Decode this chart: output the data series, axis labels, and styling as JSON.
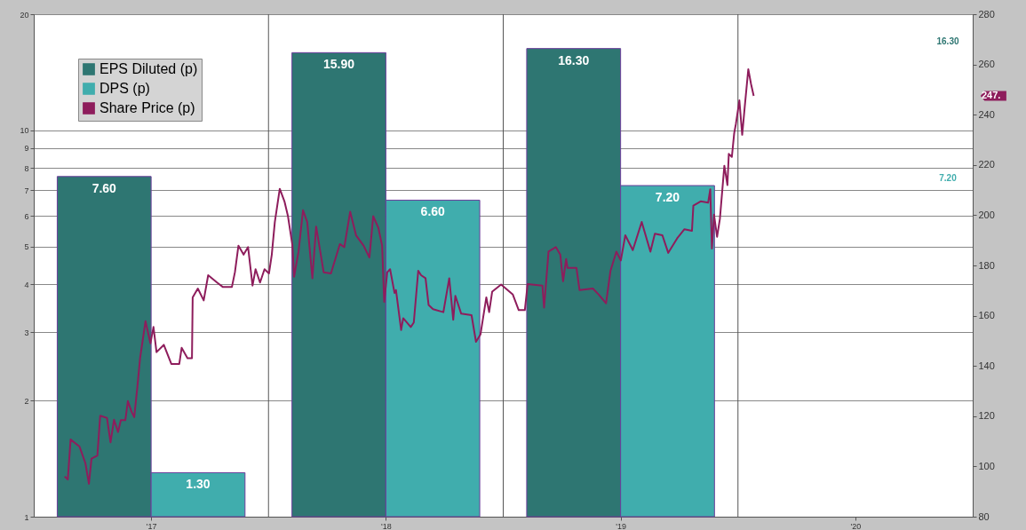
{
  "chart_data": {
    "type": "bar",
    "series": [
      {
        "name": "EPS Diluted (p)",
        "color": "#2e7672",
        "x": [
          2016.8,
          2017.8,
          2018.8
        ],
        "values": [
          7.6,
          15.9,
          16.3
        ],
        "value_labels": [
          "7.60",
          "15.90",
          "16.30"
        ]
      },
      {
        "name": "DPS (p)",
        "color": "#40adad",
        "x": [
          2017.2,
          2018.2,
          2019.2
        ],
        "values": [
          1.3,
          6.6,
          7.2
        ],
        "value_labels": [
          "1.30",
          "6.60",
          "7.20"
        ]
      },
      {
        "name": "Share Price (p)",
        "type": "line",
        "axis": "y2",
        "color": "#8e1d5c",
        "x": [
          2016.632,
          2016.645,
          2016.657,
          2016.695,
          2016.72,
          2016.735,
          2016.746,
          2016.771,
          2016.783,
          2016.812,
          2016.827,
          2016.842,
          2016.859,
          2016.871,
          2016.89,
          2016.901,
          2016.916,
          2016.928,
          2016.941,
          2016.953,
          2016.976,
          2016.997,
          2017.01,
          2017.023,
          2017.054,
          2017.086,
          2017.12,
          2017.13,
          2017.155,
          2017.174,
          2017.177,
          2017.199,
          2017.224,
          2017.243,
          2017.281,
          2017.306,
          2017.344,
          2017.357,
          2017.372,
          2017.394,
          2017.413,
          2017.432,
          2017.445,
          2017.464,
          2017.483,
          2017.502,
          2017.514,
          2017.527,
          2017.548,
          2017.568,
          2017.583,
          2017.602,
          2017.609,
          2017.628,
          2017.647,
          2017.665,
          2017.687,
          2017.703,
          2017.735,
          2017.766,
          2017.804,
          2017.823,
          2017.848,
          2017.873,
          2017.905,
          2017.93,
          2017.946,
          2017.968,
          2017.984,
          2017.993,
          2018.006,
          2018.018,
          2018.037,
          2018.043,
          2018.065,
          2018.074,
          2018.106,
          2018.119,
          2018.138,
          2018.15,
          2018.169,
          2018.182,
          2018.201,
          2018.245,
          2018.27,
          2018.287,
          2018.296,
          2018.321,
          2018.365,
          2018.384,
          2018.403,
          2018.428,
          2018.44,
          2018.453,
          2018.491,
          2018.541,
          2018.566,
          2018.592,
          2018.604,
          2018.667,
          2018.674,
          2018.693,
          2018.724,
          2018.743,
          2018.755,
          2018.768,
          2018.774,
          2018.812,
          2018.825,
          2018.882,
          2018.907,
          2018.938,
          2018.957,
          2018.982,
          2019.001,
          2019.02,
          2019.052,
          2019.09,
          2019.127,
          2019.146,
          2019.178,
          2019.203,
          2019.241,
          2019.272,
          2019.304,
          2019.31,
          2019.341,
          2019.373,
          2019.382,
          2019.389,
          2019.398,
          2019.411,
          2019.423,
          2019.442,
          2019.455,
          2019.461,
          2019.474,
          2019.484,
          2019.491,
          2019.506,
          2019.518,
          2019.529,
          2019.544,
          2019.556,
          2019.567
        ],
        "values": [
          96.0,
          94.8,
          110.7,
          107.9,
          101.3,
          93.1,
          103.1,
          104.3,
          120.2,
          119.3,
          109.6,
          118.6,
          113.7,
          118.4,
          118.4,
          126.0,
          121.9,
          119.6,
          131.3,
          143.1,
          157.8,
          149.0,
          155.5,
          145.5,
          148.4,
          140.8,
          140.8,
          147.2,
          143.1,
          143.1,
          167.3,
          170.8,
          166.1,
          176.1,
          173.2,
          171.4,
          171.4,
          177.3,
          187.9,
          184.3,
          187.3,
          172.0,
          178.5,
          173.2,
          178.5,
          176.8,
          184.3,
          197.3,
          210.5,
          205.5,
          199.6,
          187.9,
          175.5,
          185.5,
          202.0,
          197.3,
          174.9,
          195.5,
          177.3,
          176.8,
          188.5,
          187.3,
          201.4,
          192.0,
          187.9,
          183.2,
          199.6,
          195.0,
          187.9,
          165.5,
          177.3,
          178.5,
          169.0,
          170.2,
          154.3,
          159.0,
          155.5,
          157.3,
          177.9,
          176.1,
          174.9,
          164.3,
          162.6,
          161.4,
          174.9,
          158.4,
          167.9,
          160.8,
          160.2,
          149.6,
          152.5,
          167.3,
          161.4,
          169.6,
          172.4,
          168.4,
          162.2,
          162.2,
          172.6,
          172.0,
          163.2,
          185.5,
          187.3,
          184.3,
          173.7,
          182.6,
          179.0,
          179.0,
          170.2,
          170.8,
          168.4,
          164.9,
          177.9,
          185.5,
          182.0,
          192.0,
          186.1,
          197.3,
          185.5,
          192.6,
          192.0,
          185.0,
          190.8,
          194.4,
          193.8,
          203.8,
          205.5,
          205.0,
          210.3,
          186.7,
          200.2,
          191.4,
          198.5,
          219.7,
          212.0,
          224.4,
          223.2,
          232.7,
          236.2,
          245.7,
          232.0,
          243.3,
          258.1,
          252.1,
          247.5
        ]
      }
    ],
    "xlim": [
      2016.5,
      2020.5
    ],
    "xticks": [
      {
        "value": 2017,
        "label": "'17"
      },
      {
        "value": 2018,
        "label": "'18"
      },
      {
        "value": 2019,
        "label": "'19"
      },
      {
        "value": 2020,
        "label": "'20"
      }
    ],
    "log": "y",
    "ylim": [
      1,
      20
    ],
    "yticks": [
      1,
      2,
      3,
      4,
      5,
      6,
      7,
      8,
      9,
      10,
      20
    ],
    "y2lim": [
      80,
      280
    ],
    "y2ticks": [
      80,
      100,
      120,
      140,
      160,
      180,
      200,
      220,
      240,
      260,
      280
    ],
    "grid": "y",
    "ref_lines": [
      {
        "axis": "x",
        "value": 2017.5,
        "label": null
      },
      {
        "axis": "x",
        "value": 2018.5,
        "label": null
      },
      {
        "axis": "x",
        "value": 2019.5,
        "label": null
      }
    ],
    "legend": "top left",
    "annotations": [
      "16.30",
      "7.20",
      "247."
    ]
  }
}
